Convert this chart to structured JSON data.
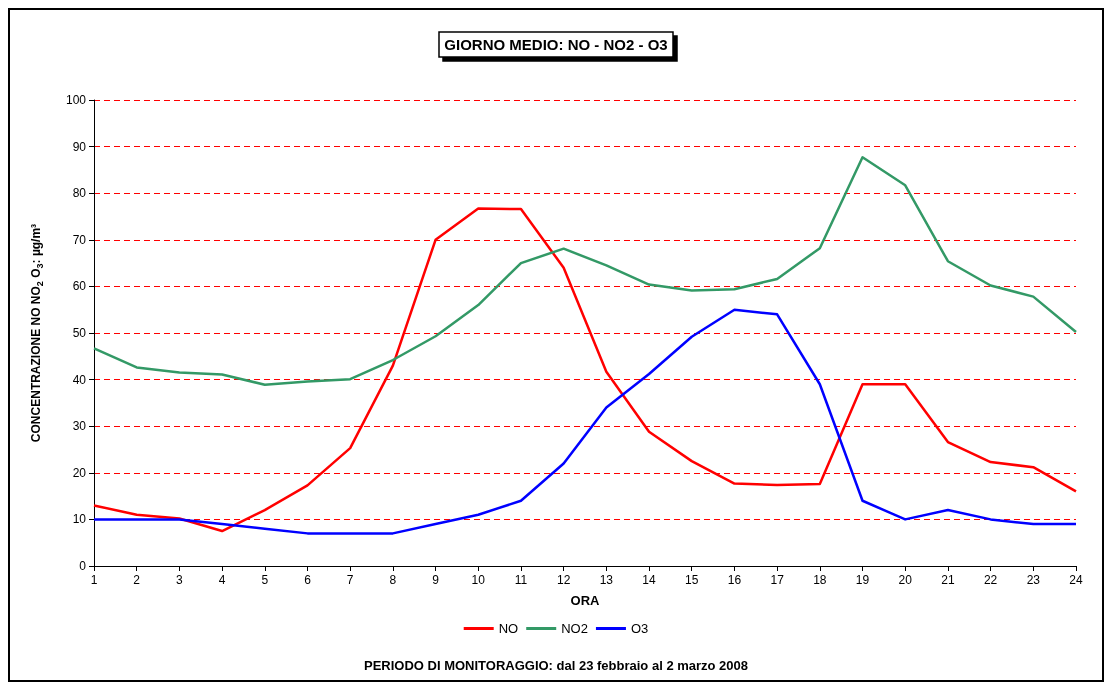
{
  "chart_data": {
    "type": "line",
    "title": "GIORNO MEDIO: NO - NO2 - O3",
    "xlabel": "ORA",
    "ylabel": "CONCENTRAZIONE NO NO$_{2}$ O$_{3}$: µg/m³",
    "x": [
      1,
      2,
      3,
      4,
      5,
      6,
      7,
      8,
      9,
      10,
      11,
      12,
      13,
      14,
      15,
      16,
      17,
      18,
      19,
      20,
      21,
      22,
      23,
      24
    ],
    "series": [
      {
        "name": "NO",
        "color": "#ff0000",
        "values": [
          13,
          11,
          10.2,
          7.5,
          12,
          17.3,
          25.3,
          43,
          70,
          76.7,
          76.6,
          64,
          41.7,
          28.8,
          22.5,
          17.7,
          17.4,
          17.6,
          39,
          39,
          26.6,
          22.3,
          21.2,
          16
        ]
      },
      {
        "name": "NO2",
        "color": "#339966",
        "values": [
          46.7,
          42.6,
          41.5,
          41.1,
          38.9,
          39.6,
          40.1,
          44.2,
          49.3,
          56,
          65,
          68.1,
          64.5,
          60.4,
          59.1,
          59.4,
          61.6,
          68.2,
          87.7,
          81.7,
          65.4,
          60.2,
          57.8,
          50.2
        ]
      },
      {
        "name": "O3",
        "color": "#0000ff",
        "values": [
          10,
          10,
          10,
          9,
          8,
          7,
          7,
          7,
          9,
          11,
          14,
          22,
          34,
          41.2,
          49.2,
          55,
          54,
          39,
          14,
          10,
          12,
          10,
          9,
          9
        ]
      }
    ],
    "xlim": [
      1,
      24
    ],
    "xticks": [
      1,
      2,
      3,
      4,
      5,
      6,
      7,
      8,
      9,
      10,
      11,
      12,
      13,
      14,
      15,
      16,
      17,
      18,
      19,
      20,
      21,
      22,
      23,
      24
    ],
    "ylim": [
      0,
      100
    ],
    "yticks": [
      0,
      10,
      20,
      30,
      40,
      50,
      60,
      70,
      80,
      90,
      100
    ],
    "grid": "y",
    "legend": "bottom",
    "marker": "none",
    "line_style": "solid",
    "annotations": [
      "PERIODO DI MONITORAGGIO: dal 23 febbraio al 2 marzo 2008"
    ]
  }
}
